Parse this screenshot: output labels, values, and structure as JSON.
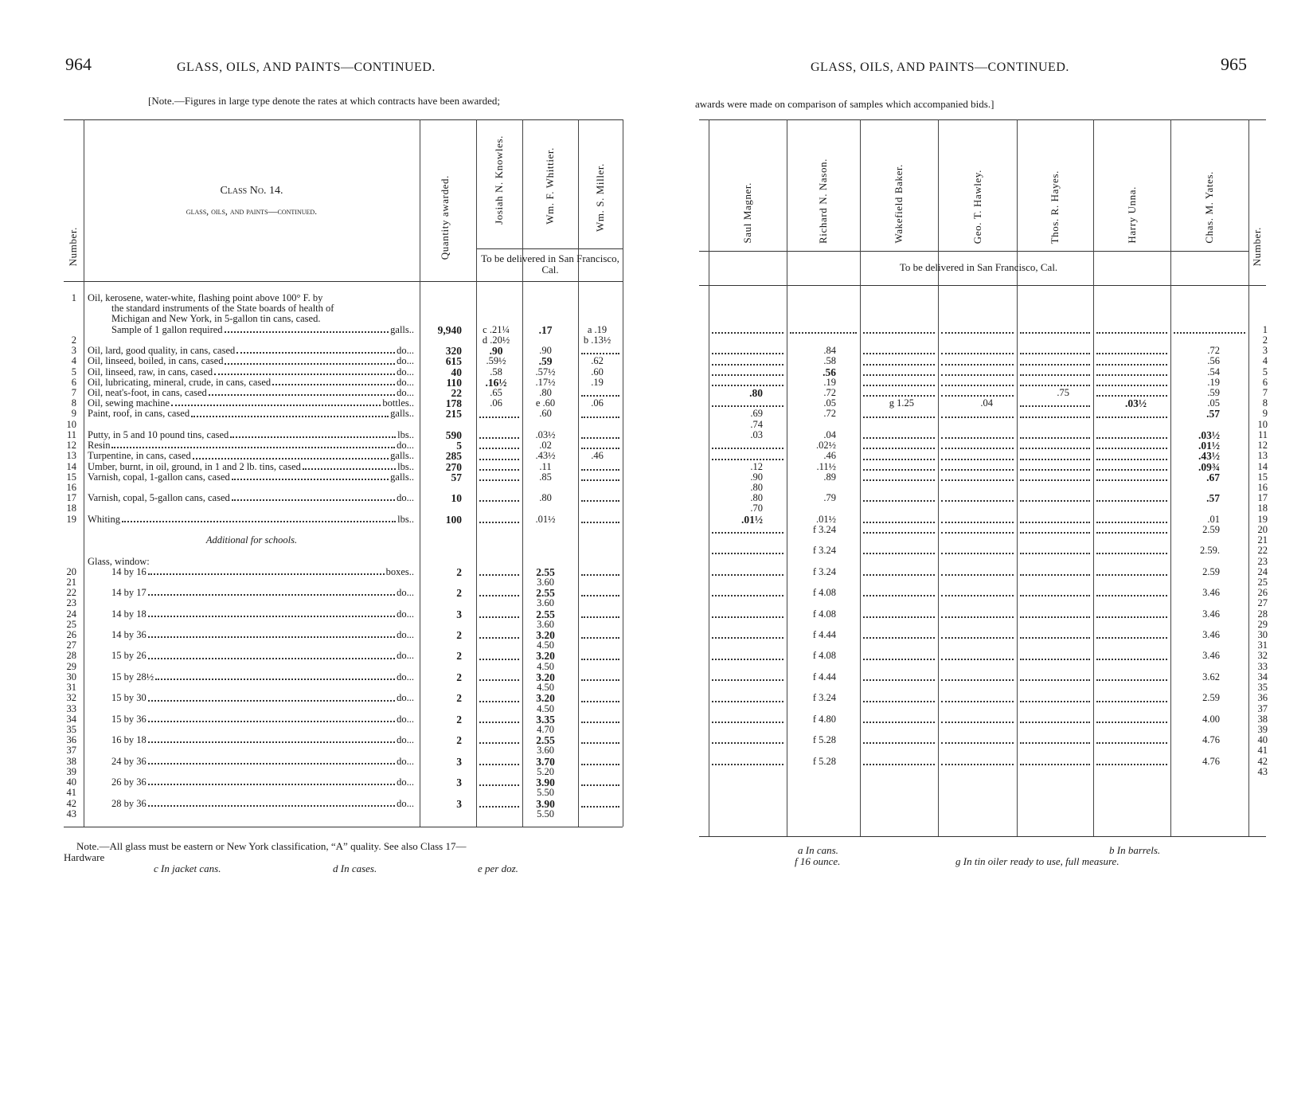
{
  "left_page": {
    "page_number": "964",
    "running_head": "GLASS, OILS, AND PAINTS—CONTINUED.",
    "note": "[Note.—Figures in large type denote the rates at which contracts have been awarded;",
    "header": {
      "number": "Number.",
      "class_title": "Class No. 14.",
      "class_subtitle": "glass, oils, and paints—continued.",
      "quantity": "Quantity awarded.",
      "bidders": [
        "Josiah N. Knowles.",
        "Wm. F. Whittier.",
        "Wm. S. Miller."
      ],
      "delivery": "To be delivered in San Francisco, Cal."
    },
    "lines": [
      {
        "n": "1",
        "desc": "Oil, kerosene, water-white, flashing point above 100° F. by",
        "nofill": true
      },
      {
        "desc": "the standard instruments of the State boards of health of",
        "indent": true,
        "nofill": true
      },
      {
        "desc": "Michigan and New York, in 5-gallon tin cans, cased.",
        "indent": true,
        "nofill": true
      },
      {
        "desc": "Sample of 1 gallon required",
        "unit": "galls..",
        "indent": true,
        "qty": "9,940",
        "c": [
          "c .21¼",
          {
            "t": ".17",
            "b": true
          },
          "a .19"
        ]
      },
      {
        "n": "2",
        "c": [
          "d .20½",
          "",
          "b .13½"
        ]
      },
      {
        "n": "3",
        "desc": "Oil, lard, good quality, in cans, cased",
        "unit": "do...",
        "qty": "320",
        "c": [
          {
            "t": ".90",
            "b": true
          },
          ".90",
          null
        ]
      },
      {
        "n": "4",
        "desc": "Oil, linseed, boiled, in cans, cased",
        "unit": "do...",
        "qty": "615",
        "c": [
          ".59½",
          {
            "t": ".59",
            "b": true
          },
          ".62"
        ]
      },
      {
        "n": "5",
        "desc": "Oil, linseed, raw, in cans, cased",
        "unit": "do...",
        "qty": "40",
        "c": [
          ".58",
          ".57½",
          ".60"
        ]
      },
      {
        "n": "6",
        "desc": "Oil, lubricating, mineral, crude, in cans, cased",
        "unit": "do...",
        "qty": "110",
        "c": [
          {
            "t": ".16½",
            "b": true
          },
          ".17½",
          ".19"
        ]
      },
      {
        "n": "7",
        "desc": "Oil, neat's-foot, in cans, cased",
        "unit": "do...",
        "qty": "22",
        "c": [
          ".65",
          ".80",
          null
        ]
      },
      {
        "n": "8",
        "desc": "Oil, sewing machine",
        "unit": "bottles..",
        "qty": "178",
        "c": [
          ".06",
          "e .60",
          ".06"
        ]
      },
      {
        "n": "9",
        "desc": "Paint, roof, in cans, cased",
        "unit": "galls..",
        "qty": "215",
        "c": [
          null,
          ".60",
          null
        ]
      },
      {
        "n": "10"
      },
      {
        "n": "11",
        "desc": "Putty, in 5 and 10 pound tins, cased",
        "unit": "lbs..",
        "qty": "590",
        "c": [
          null,
          ".03½",
          null
        ]
      },
      {
        "n": "12",
        "desc": "Resin",
        "unit": "do...",
        "qty": "5",
        "c": [
          null,
          ".02",
          null
        ]
      },
      {
        "n": "13",
        "desc": "Turpentine, in cans, cased",
        "unit": "galls..",
        "qty": "285",
        "c": [
          null,
          ".43½",
          ".46"
        ]
      },
      {
        "n": "14",
        "desc": "Umber, burnt, in oil, ground, in 1 and 2 lb. tins, cased",
        "unit": "lbs..",
        "qty": "270",
        "c": [
          null,
          ".11",
          null
        ]
      },
      {
        "n": "15",
        "desc": "Varnish, copal, 1-gallon cans, cased",
        "unit": "galls..",
        "qty": "57",
        "c": [
          null,
          ".85",
          null
        ]
      },
      {
        "n": "16"
      },
      {
        "n": "17",
        "desc": "Varnish, copal, 5-gallon cans, cased",
        "unit": "do...",
        "qty": "10",
        "c": [
          null,
          ".80",
          null
        ]
      },
      {
        "n": "18"
      },
      {
        "n": "19",
        "desc": "Whiting",
        "unit": "lbs..",
        "qty": "100",
        "c": [
          null,
          ".01½",
          null
        ]
      },
      {},
      {
        "center": "Additional for schools."
      },
      {},
      {
        "desc": "Glass, window:",
        "nofill": true
      },
      {
        "n": "20",
        "desc": "14 by 16",
        "unit": "boxes..",
        "indent": true,
        "qty": "2",
        "c": [
          null,
          {
            "t": "2.55",
            "b": true
          },
          null
        ]
      },
      {
        "n": "21",
        "c": [
          "",
          "3.60",
          ""
        ]
      },
      {
        "n": "22",
        "desc": "14 by 17",
        "unit": "do...",
        "indent": true,
        "qty": "2",
        "c": [
          null,
          {
            "t": "2.55",
            "b": true
          },
          null
        ]
      },
      {
        "n": "23",
        "c": [
          "",
          "3.60",
          ""
        ]
      },
      {
        "n": "24",
        "desc": "14 by 18",
        "unit": "do...",
        "indent": true,
        "qty": "3",
        "c": [
          null,
          {
            "t": "2.55",
            "b": true
          },
          null
        ]
      },
      {
        "n": "25",
        "c": [
          "",
          "3.60",
          ""
        ]
      },
      {
        "n": "26",
        "desc": "14 by 36",
        "unit": "do...",
        "indent": true,
        "qty": "2",
        "c": [
          null,
          {
            "t": "3.20",
            "b": true
          },
          null
        ]
      },
      {
        "n": "27",
        "c": [
          "",
          "4.50",
          ""
        ]
      },
      {
        "n": "28",
        "desc": "15 by 26",
        "unit": "do...",
        "indent": true,
        "qty": "2",
        "c": [
          null,
          {
            "t": "3.20",
            "b": true
          },
          null
        ]
      },
      {
        "n": "29",
        "c": [
          "",
          "4.50",
          ""
        ]
      },
      {
        "n": "30",
        "desc": "15 by 28½",
        "unit": "do...",
        "indent": true,
        "qty": "2",
        "c": [
          null,
          {
            "t": "3.20",
            "b": true
          },
          null
        ]
      },
      {
        "n": "31",
        "c": [
          "",
          "4.50",
          ""
        ]
      },
      {
        "n": "32",
        "desc": "15 by 30",
        "unit": "do...",
        "indent": true,
        "qty": "2",
        "c": [
          null,
          {
            "t": "3.20",
            "b": true
          },
          null
        ]
      },
      {
        "n": "33",
        "c": [
          "",
          "4.50",
          ""
        ]
      },
      {
        "n": "34",
        "desc": "15 by 36",
        "unit": "do...",
        "indent": true,
        "qty": "2",
        "c": [
          null,
          {
            "t": "3.35",
            "b": true
          },
          null
        ]
      },
      {
        "n": "35",
        "c": [
          "",
          "4.70",
          ""
        ]
      },
      {
        "n": "36",
        "desc": "16 by 18",
        "unit": "do...",
        "indent": true,
        "qty": "2",
        "c": [
          null,
          {
            "t": "2.55",
            "b": true
          },
          null
        ]
      },
      {
        "n": "37",
        "c": [
          "",
          "3.60",
          ""
        ]
      },
      {
        "n": "38",
        "desc": "24 by 36",
        "unit": "do...",
        "indent": true,
        "qty": "3",
        "c": [
          null,
          {
            "t": "3.70",
            "b": true
          },
          null
        ]
      },
      {
        "n": "39",
        "c": [
          "",
          "5.20",
          ""
        ]
      },
      {
        "n": "40",
        "desc": "26 by 36",
        "unit": "do...",
        "indent": true,
        "qty": "3",
        "c": [
          null,
          {
            "t": "3.90",
            "b": true
          },
          null
        ]
      },
      {
        "n": "41",
        "c": [
          "",
          "5.50",
          ""
        ]
      },
      {
        "n": "42",
        "desc": "28 by 36",
        "unit": "do...",
        "indent": true,
        "qty": "3",
        "c": [
          null,
          {
            "t": "3.90",
            "b": true
          },
          null
        ]
      },
      {
        "n": "43",
        "c": [
          "",
          "5.50",
          ""
        ]
      }
    ],
    "footnote_main": "Note.—All glass must be eastern or New York classification, “A” quality.  See also Class 17—",
    "footnote_main_2": "Hardware",
    "footnotes": [
      "c In jacket cans.",
      "d In cases.",
      "e per doz."
    ]
  },
  "right_page": {
    "page_number": "965",
    "running_head": "GLASS, OILS, AND PAINTS—CONTINUED.",
    "note": "awards were made on comparison of samples which accompanied bids.]",
    "header": {
      "bidders": [
        "Saul Magner.",
        "Richard N. Nason.",
        "Wakefield Baker.",
        "Geo. T. Hawley.",
        "Thos. R. Hayes.",
        "Harry Unna.",
        "Chas. M. Yates."
      ],
      "delivery": "To be delivered in San Francisco, Cal.",
      "number": "Number."
    },
    "rows": [
      {
        "n": "1",
        "c": [
          null,
          null,
          null,
          null,
          null,
          null,
          null
        ]
      },
      {
        "n": "2",
        "c": [
          "",
          "",
          "",
          "",
          "",
          "",
          ""
        ]
      },
      {
        "n": "3",
        "c": [
          null,
          ".84",
          null,
          null,
          null,
          null,
          ".72"
        ]
      },
      {
        "n": "4",
        "c": [
          null,
          ".58",
          null,
          null,
          null,
          null,
          ".56"
        ]
      },
      {
        "n": "5",
        "c": [
          null,
          {
            "t": ".56",
            "b": true
          },
          null,
          null,
          null,
          null,
          ".54"
        ]
      },
      {
        "n": "6",
        "c": [
          null,
          ".19",
          null,
          null,
          null,
          null,
          ".19"
        ]
      },
      {
        "n": "7",
        "c": [
          {
            "t": ".80",
            "b": true
          },
          ".72",
          null,
          null,
          ".75",
          null,
          ".59"
        ]
      },
      {
        "n": "8",
        "c": [
          null,
          ".05",
          "g 1.25",
          ".04",
          null,
          {
            "t": ".03½",
            "b": true
          },
          ".05"
        ]
      },
      {
        "n": "9",
        "c": [
          ".69",
          ".72",
          null,
          null,
          null,
          null,
          {
            "t": ".57",
            "b": true
          }
        ]
      },
      {
        "n": "10",
        "c": [
          ".74",
          "",
          "",
          "",
          "",
          "",
          ""
        ]
      },
      {
        "n": "11",
        "c": [
          ".03",
          ".04",
          null,
          null,
          null,
          null,
          {
            "t": ".03½",
            "b": true
          }
        ]
      },
      {
        "n": "12",
        "c": [
          null,
          ".02½",
          null,
          null,
          null,
          null,
          {
            "t": ".01½",
            "b": true
          }
        ]
      },
      {
        "n": "13",
        "c": [
          null,
          ".46",
          null,
          null,
          null,
          null,
          {
            "t": ".43½",
            "b": true
          }
        ]
      },
      {
        "n": "14",
        "c": [
          ".12",
          ".11½",
          null,
          null,
          null,
          null,
          {
            "t": ".09¾",
            "b": true
          }
        ]
      },
      {
        "n": "15",
        "c": [
          ".90",
          ".89",
          null,
          null,
          null,
          null,
          {
            "t": ".67",
            "b": true
          }
        ]
      },
      {
        "n": "16",
        "c": [
          ".80",
          "",
          "",
          "",
          "",
          "",
          ""
        ]
      },
      {
        "n": "17",
        "c": [
          ".80",
          ".79",
          null,
          null,
          null,
          null,
          {
            "t": ".57",
            "b": true
          }
        ]
      },
      {
        "n": "18",
        "c": [
          ".70",
          "",
          "",
          "",
          "",
          "",
          ""
        ]
      },
      {
        "n": "19",
        "c": [
          {
            "t": ".01½",
            "b": true
          },
          ".01½",
          null,
          null,
          null,
          null,
          ".01"
        ]
      },
      {
        "n": "20",
        "c": [
          null,
          "f 3.24",
          null,
          null,
          null,
          null,
          "2.59"
        ]
      },
      {
        "n": "21",
        "c": [
          "",
          "",
          "",
          "",
          "",
          "",
          ""
        ]
      },
      {
        "n": "22",
        "c": [
          null,
          "f 3.24",
          null,
          null,
          null,
          null,
          "2.59."
        ]
      },
      {
        "n": "23",
        "c": [
          "",
          "",
          "",
          "",
          "",
          "",
          ""
        ]
      },
      {
        "n": "24",
        "c": [
          null,
          "f 3.24",
          null,
          null,
          null,
          null,
          "2.59"
        ]
      },
      {
        "n": "25",
        "c": [
          "",
          "",
          "",
          "",
          "",
          "",
          ""
        ]
      },
      {
        "n": "26",
        "c": [
          null,
          "f 4.08",
          null,
          null,
          null,
          null,
          "3.46"
        ]
      },
      {
        "n": "27",
        "c": [
          "",
          "",
          "",
          "",
          "",
          "",
          ""
        ]
      },
      {
        "n": "28",
        "c": [
          null,
          "f 4.08",
          null,
          null,
          null,
          null,
          "3.46"
        ]
      },
      {
        "n": "29",
        "c": [
          "",
          "",
          "",
          "",
          "",
          "",
          ""
        ]
      },
      {
        "n": "30",
        "c": [
          null,
          "f 4.44",
          null,
          null,
          null,
          null,
          "3.46"
        ]
      },
      {
        "n": "31",
        "c": [
          "",
          "",
          "",
          "",
          "",
          "",
          ""
        ]
      },
      {
        "n": "32",
        "c": [
          null,
          "f 4.08",
          null,
          null,
          null,
          null,
          "3.46"
        ]
      },
      {
        "n": "33",
        "c": [
          "",
          "",
          "",
          "",
          "",
          "",
          ""
        ]
      },
      {
        "n": "34",
        "c": [
          null,
          "f 4.44",
          null,
          null,
          null,
          null,
          "3.62"
        ]
      },
      {
        "n": "35",
        "c": [
          "",
          "",
          "",
          "",
          "",
          "",
          ""
        ]
      },
      {
        "n": "36",
        "c": [
          null,
          "f 3.24",
          null,
          null,
          null,
          null,
          "2.59"
        ]
      },
      {
        "n": "37",
        "c": [
          "",
          "",
          "",
          "",
          "",
          "",
          ""
        ]
      },
      {
        "n": "38",
        "c": [
          null,
          "f 4.80",
          null,
          null,
          null,
          null,
          "4.00"
        ]
      },
      {
        "n": "39",
        "c": [
          "",
          "",
          "",
          "",
          "",
          "",
          ""
        ]
      },
      {
        "n": "40",
        "c": [
          null,
          "f 5.28",
          null,
          null,
          null,
          null,
          "4.76"
        ]
      },
      {
        "n": "41",
        "c": [
          "",
          "",
          "",
          "",
          "",
          "",
          ""
        ]
      },
      {
        "n": "42",
        "c": [
          null,
          "f 5.28",
          null,
          null,
          null,
          null,
          "4.76"
        ]
      },
      {
        "n": "43",
        "c": [
          "",
          "",
          "",
          "",
          "",
          "",
          ""
        ]
      }
    ],
    "footnotes": [
      "a In cans.",
      "f 16 ounce.",
      "b In barrels.",
      "g In tin oiler ready to use, full measure."
    ]
  }
}
